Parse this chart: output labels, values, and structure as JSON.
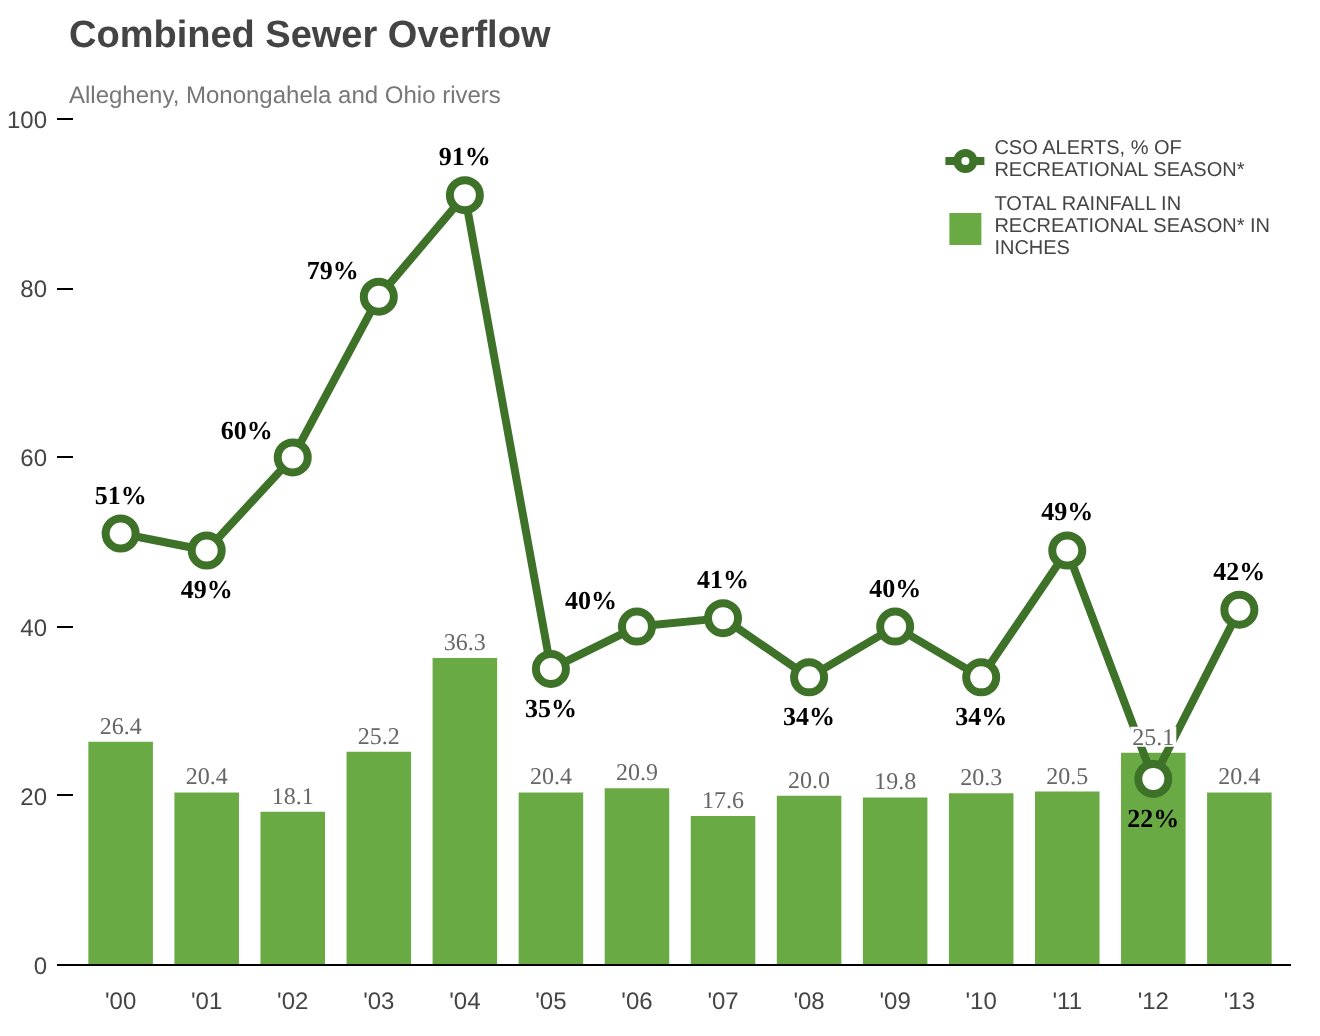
{
  "chart_data": {
    "type": "bar",
    "title": "Combined Sewer Overflow",
    "subtitle": "Allegheny, Monongahela and Ohio rivers",
    "categories": [
      "'00",
      "'01",
      "'02",
      "'03",
      "'04",
      "'05",
      "'06",
      "'07",
      "'08",
      "'09",
      "'10",
      "'11",
      "'12",
      "'13"
    ],
    "series": [
      {
        "name": "TOTAL RAINFALL IN RECREATIONAL SEASON* IN INCHES",
        "color": "#6aaa45",
        "values": [
          26.4,
          20.4,
          18.1,
          25.2,
          36.3,
          20.4,
          20.9,
          17.6,
          20.0,
          19.8,
          20.3,
          20.5,
          25.1,
          20.4
        ],
        "value_labels": [
          "26.4",
          "20.4",
          "18.1",
          "25.2",
          "36.3",
          "20.4",
          "20.9",
          "17.6",
          "20.0",
          "19.8",
          "20.3",
          "20.5",
          "25.1",
          "20.4"
        ]
      },
      {
        "name": "CSO ALERTS, % OF RECREATIONAL SEASON*",
        "type": "line",
        "color": "#3e7228",
        "values": [
          51,
          49,
          60,
          79,
          91,
          35,
          40,
          41,
          34,
          40,
          34,
          49,
          22,
          42
        ],
        "value_labels": [
          "51%",
          "49%",
          "60%",
          "79%",
          "91%",
          "35%",
          "40%",
          "41%",
          "34%",
          "40%",
          "34%",
          "49%",
          "22%",
          "42%"
        ]
      }
    ],
    "ylim": [
      0,
      100
    ],
    "yticks": [
      0,
      20,
      40,
      60,
      80,
      100
    ],
    "grid": false,
    "legend": "top right",
    "marker": "circle",
    "line_style": "solid"
  }
}
